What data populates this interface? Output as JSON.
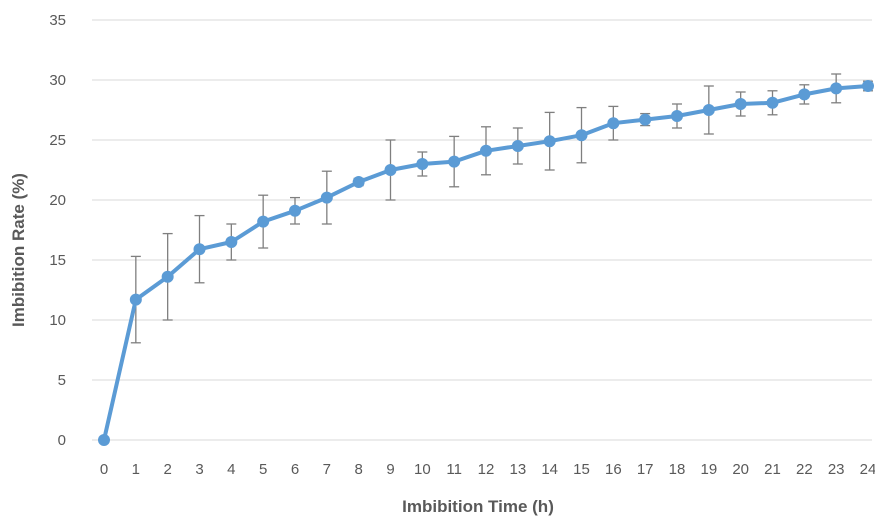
{
  "chart_data": {
    "type": "line",
    "title": "",
    "xlabel": "Imbibition Time (h)",
    "ylabel": "Imbibition Rate (%)",
    "x": [
      0,
      1,
      2,
      3,
      4,
      5,
      6,
      7,
      8,
      9,
      10,
      11,
      12,
      13,
      14,
      15,
      16,
      17,
      18,
      19,
      20,
      21,
      22,
      23,
      24
    ],
    "xticks": [
      "0",
      "1",
      "2",
      "3",
      "4",
      "5",
      "6",
      "7",
      "8",
      "9",
      "10",
      "11",
      "12",
      "13",
      "14",
      "15",
      "16",
      "17",
      "18",
      "19",
      "20",
      "21",
      "22",
      "23",
      "24"
    ],
    "yticks": [
      "0",
      "5",
      "10",
      "15",
      "20",
      "25",
      "30",
      "35"
    ],
    "ylim": [
      0,
      35
    ],
    "grid": "horizontal",
    "legend": "none",
    "series": [
      {
        "color": "#5b9bd5",
        "values": [
          0,
          11.7,
          13.6,
          15.9,
          16.5,
          18.2,
          19.1,
          20.2,
          21.5,
          22.5,
          23.0,
          23.2,
          24.1,
          24.5,
          24.9,
          25.4,
          26.4,
          26.7,
          27.0,
          27.5,
          28.0,
          28.1,
          28.8,
          29.3,
          29.5
        ],
        "error": [
          0,
          3.6,
          3.6,
          2.8,
          1.5,
          2.2,
          1.1,
          2.2,
          0.3,
          2.5,
          1.0,
          2.1,
          2.0,
          1.5,
          2.4,
          2.3,
          1.4,
          0.5,
          1.0,
          2.0,
          1.0,
          1.0,
          0.8,
          1.2,
          0.4
        ]
      }
    ],
    "error_bar_color": "#7f7f7f"
  }
}
